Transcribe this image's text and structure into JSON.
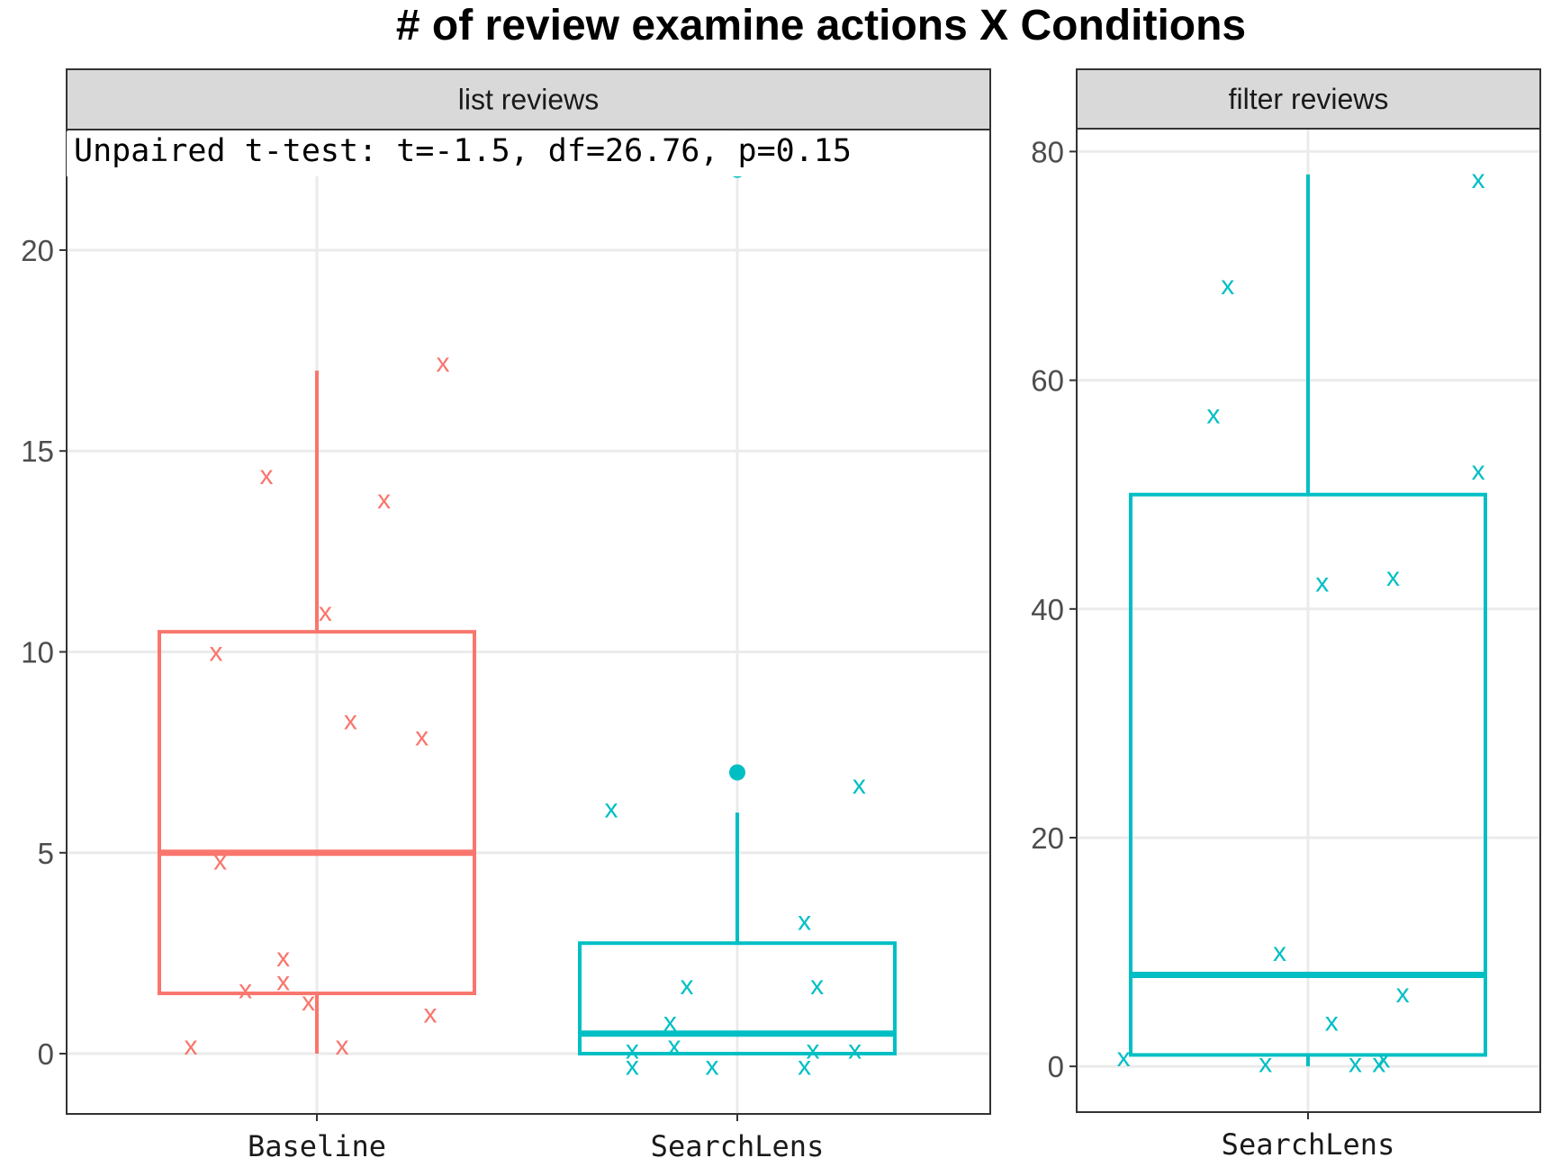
{
  "chart_data": {
    "type": "boxplot",
    "title": "# of review examine actions X Conditions",
    "xlabel": "",
    "ylabel": "",
    "colors": {
      "Baseline": "#F8766D",
      "SearchLens": "#00BFC4"
    },
    "point_marker": "x",
    "grid": true,
    "panels": [
      {
        "strip_label": "list reviews",
        "annotation": "Unpaired t-test: t=-1.5, df=26.76, p=0.15",
        "ylim": [
          -1.5,
          23
        ],
        "yticks": [
          "0",
          "5",
          "10",
          "15",
          "20"
        ],
        "ytick_values": [
          0,
          5,
          10,
          15,
          20
        ],
        "groups": [
          {
            "name": "Baseline",
            "box": {
              "q1": 1.5,
              "median": 5,
              "q3": 10.5,
              "whisker_low": 0,
              "whisker_high": 17
            },
            "outliers": [],
            "points": [
              {
                "jitter": -0.3,
                "y": 0.2
              },
              {
                "jitter": 0.06,
                "y": 0.2
              },
              {
                "jitter": -0.24,
                "y": 10.0
              },
              {
                "jitter": -0.23,
                "y": 4.8
              },
              {
                "jitter": -0.17,
                "y": 1.6
              },
              {
                "jitter": -0.12,
                "y": 14.4
              },
              {
                "jitter": -0.08,
                "y": 2.4
              },
              {
                "jitter": -0.08,
                "y": 1.8
              },
              {
                "jitter": -0.02,
                "y": 1.3
              },
              {
                "jitter": 0.02,
                "y": 11.0
              },
              {
                "jitter": 0.08,
                "y": 8.3
              },
              {
                "jitter": 0.16,
                "y": 13.8
              },
              {
                "jitter": 0.25,
                "y": 7.9
              },
              {
                "jitter": 0.27,
                "y": 1.0
              },
              {
                "jitter": 0.3,
                "y": 17.2
              }
            ]
          },
          {
            "name": "SearchLens",
            "box": {
              "q1": 0,
              "median": 0.5,
              "q3": 2.75,
              "whisker_low": 0,
              "whisker_high": 6
            },
            "outliers": [
              7,
              22
            ],
            "points": [
              {
                "jitter": -0.3,
                "y": 6.1
              },
              {
                "jitter": -0.25,
                "y": -0.3
              },
              {
                "jitter": -0.25,
                "y": 0.1
              },
              {
                "jitter": -0.2,
                "y": 22.2
              },
              {
                "jitter": -0.16,
                "y": 0.8
              },
              {
                "jitter": -0.15,
                "y": 0.2
              },
              {
                "jitter": -0.12,
                "y": 1.7
              },
              {
                "jitter": -0.06,
                "y": -0.3
              },
              {
                "jitter": 0.16,
                "y": -0.3
              },
              {
                "jitter": 0.16,
                "y": 3.3
              },
              {
                "jitter": 0.18,
                "y": 0.1
              },
              {
                "jitter": 0.19,
                "y": 1.7
              },
              {
                "jitter": 0.28,
                "y": 0.1
              },
              {
                "jitter": 0.29,
                "y": 6.7
              }
            ]
          }
        ]
      },
      {
        "strip_label": "filter    reviews",
        "annotation": "",
        "ylim": [
          -4,
          82
        ],
        "yticks": [
          "0",
          "20",
          "40",
          "60",
          "80"
        ],
        "ytick_values": [
          0,
          20,
          40,
          60,
          80
        ],
        "groups": [
          {
            "name": "SearchLens",
            "box": {
              "q1": 1,
              "median": 8,
              "q3": 50,
              "whisker_low": 0,
              "whisker_high": 78
            },
            "outliers": [],
            "points": [
              {
                "jitter": -0.39,
                "y": 0.8
              },
              {
                "jitter": -0.2,
                "y": 57
              },
              {
                "jitter": -0.17,
                "y": 68.3
              },
              {
                "jitter": -0.09,
                "y": 0.3
              },
              {
                "jitter": -0.06,
                "y": 10
              },
              {
                "jitter": 0.03,
                "y": 42.3
              },
              {
                "jitter": 0.05,
                "y": 3.9
              },
              {
                "jitter": 0.1,
                "y": 0.3
              },
              {
                "jitter": 0.15,
                "y": 0.3
              },
              {
                "jitter": 0.16,
                "y": 0.7
              },
              {
                "jitter": 0.18,
                "y": 42.8
              },
              {
                "jitter": 0.2,
                "y": 6.4
              },
              {
                "jitter": 0.36,
                "y": 52.1
              },
              {
                "jitter": 0.36,
                "y": 77.6
              }
            ]
          }
        ]
      }
    ]
  }
}
